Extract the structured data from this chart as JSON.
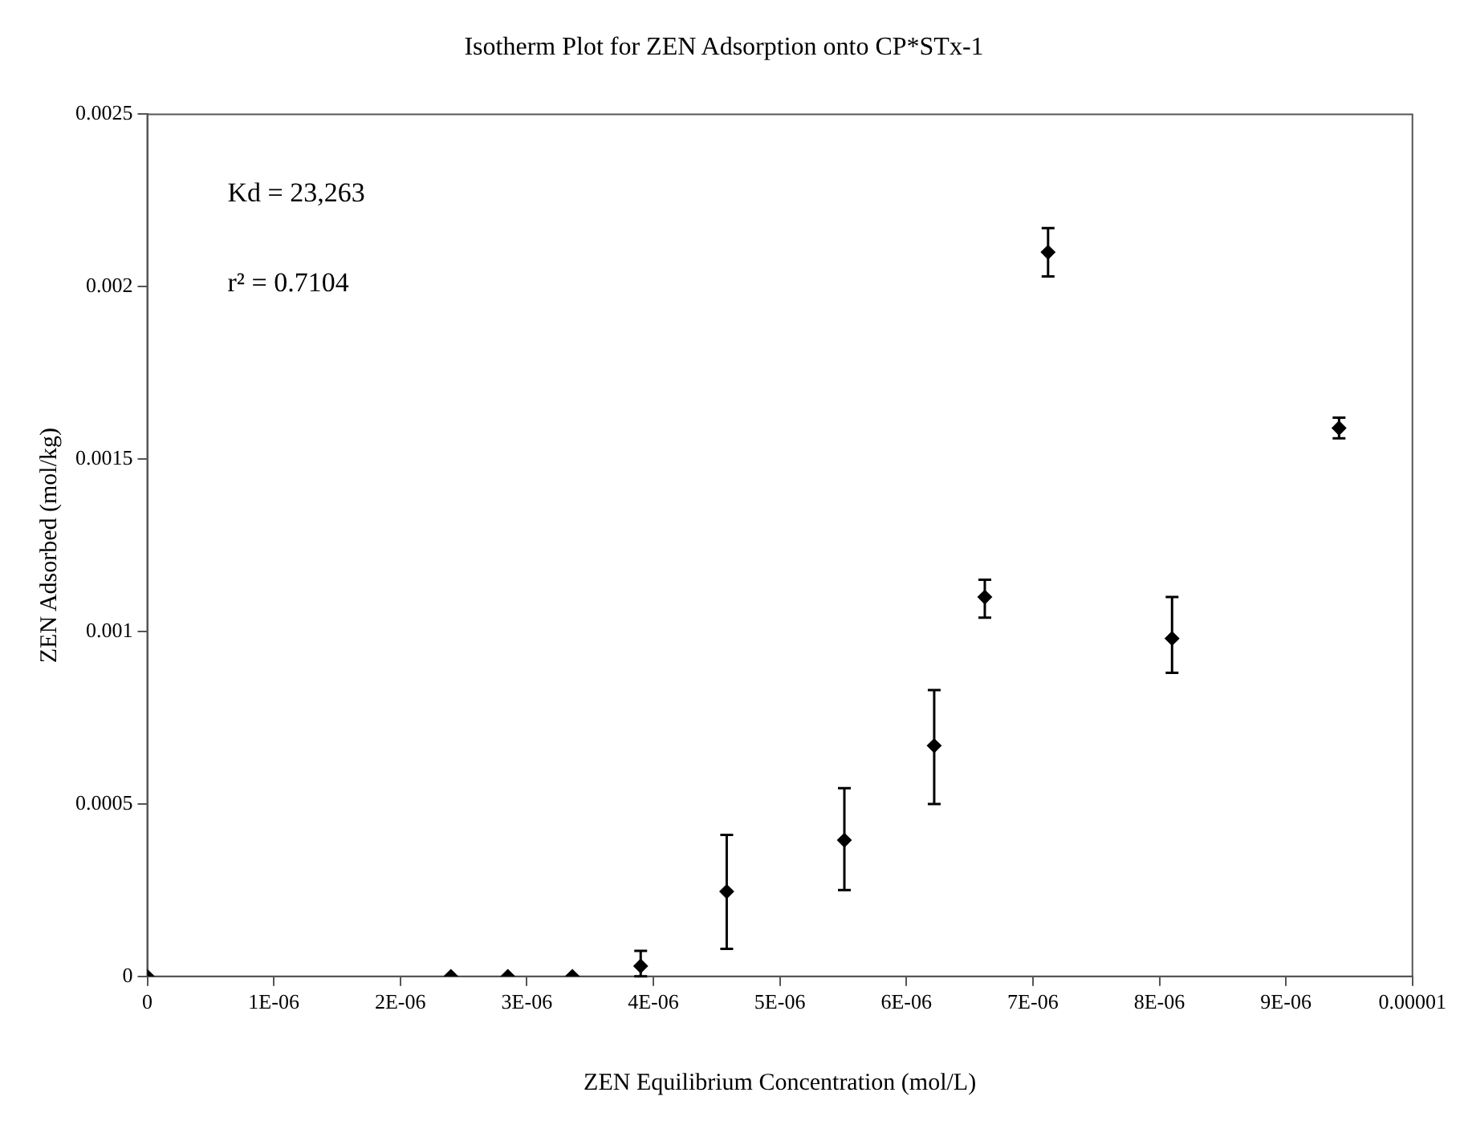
{
  "chart_data": {
    "type": "scatter",
    "title": "Isotherm Plot for ZEN Adsorption onto CP*STx-1",
    "xlabel": "ZEN Equilibrium Concentration (mol/L)",
    "ylabel": "ZEN Adsorbed (mol/kg)",
    "annotations": [
      "Kd = 23,263",
      "r² = 0.7104"
    ],
    "x": [
      0,
      2.4e-06,
      2.85e-06,
      3.36e-06,
      3.9e-06,
      4.58e-06,
      5.51e-06,
      6.22e-06,
      6.62e-06,
      7.12e-06,
      8.1e-06,
      9.42e-06
    ],
    "series": [
      {
        "color": "#000000",
        "values": [
          0,
          0,
          0,
          0,
          3e-05,
          0.000246,
          0.000395,
          0.000669,
          0.0011,
          0.0021,
          0.00098,
          0.00159
        ],
        "errors": [
          null,
          null,
          null,
          null,
          [
            0,
            7.4e-05
          ],
          [
            8e-05,
            0.00041
          ],
          [
            0.00025,
            0.000546
          ],
          [
            0.0005,
            0.00083
          ],
          [
            0.00104,
            0.00115
          ],
          [
            0.00203,
            0.00217
          ],
          [
            0.00088,
            0.0011
          ],
          [
            0.00156,
            0.00162
          ]
        ]
      }
    ],
    "xlim": [
      0,
      1e-05
    ],
    "xticks": [
      0,
      {
        "value": 1e-06,
        "label": "1E-06"
      },
      {
        "value": 2e-06,
        "label": "2E-06"
      },
      {
        "value": 3e-06,
        "label": "3E-06"
      },
      {
        "value": 4e-06,
        "label": "4E-06"
      },
      {
        "value": 5e-06,
        "label": "5E-06"
      },
      {
        "value": 6e-06,
        "label": "6E-06"
      },
      {
        "value": 7e-06,
        "label": "7E-06"
      },
      {
        "value": 8e-06,
        "label": "8E-06"
      },
      {
        "value": 9e-06,
        "label": "9E-06"
      },
      {
        "value": 1e-05,
        "label": "0.00001"
      }
    ],
    "ylim": [
      0,
      0.0025
    ],
    "yticks": [
      0,
      0.0005,
      0.001,
      0.0015,
      0.002,
      0.0025
    ],
    "grid": false,
    "legend": false,
    "marker": "diamond"
  }
}
